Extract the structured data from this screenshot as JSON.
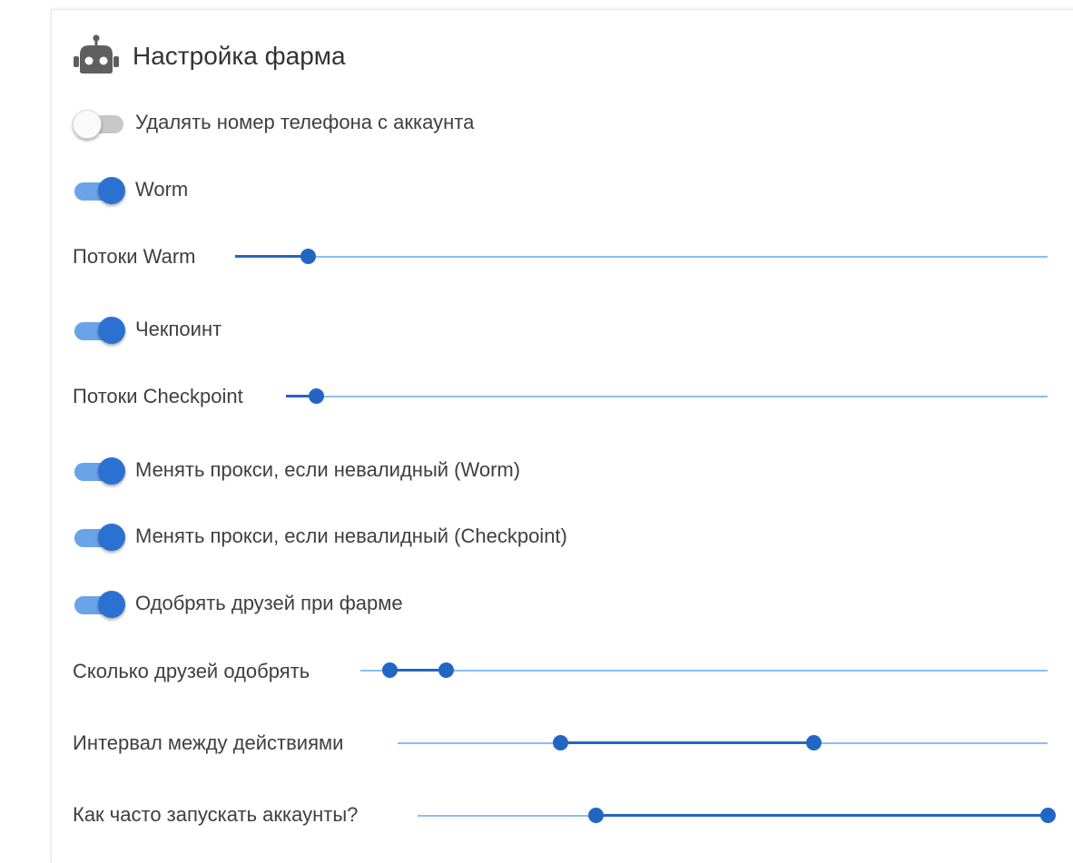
{
  "panel": {
    "title": "Настройка фарма",
    "icon": "robot-icon"
  },
  "settings": [
    {
      "kind": "toggle",
      "label": "Удалять номер телефона с аккаунта",
      "on": false
    },
    {
      "kind": "toggle",
      "label": "Worm",
      "on": true
    },
    {
      "kind": "slider",
      "label": "Потоки Warm",
      "values": [
        0.09
      ]
    },
    {
      "kind": "toggle",
      "label": "Чекпоинт",
      "on": true
    },
    {
      "kind": "slider",
      "label": "Потоки Checkpoint",
      "values": [
        0.04
      ]
    },
    {
      "kind": "toggle",
      "label": "Менять прокси, если невалидный (Worm)",
      "on": true
    },
    {
      "kind": "toggle",
      "label": "Менять прокси, если невалидный (Checkpoint)",
      "on": true
    },
    {
      "kind": "toggle",
      "label": "Одобрять друзей при фарме",
      "on": true
    },
    {
      "kind": "slider",
      "label": "Сколько друзей одобрять",
      "values": [
        0.043,
        0.125
      ]
    },
    {
      "kind": "slider",
      "label": "Интервал между действиями",
      "values": [
        0.25,
        0.64
      ]
    },
    {
      "kind": "slider",
      "label": "Как часто запускать аккаунты?",
      "values": [
        0.283,
        1.0
      ]
    }
  ],
  "colors": {
    "accent": "#2266c4",
    "accent_light": "#8bbdf0",
    "toggle_track_on": "#6ba3e8",
    "toggle_thumb_on": "#2b71d1",
    "toggle_track_off": "#c8c8c8"
  }
}
